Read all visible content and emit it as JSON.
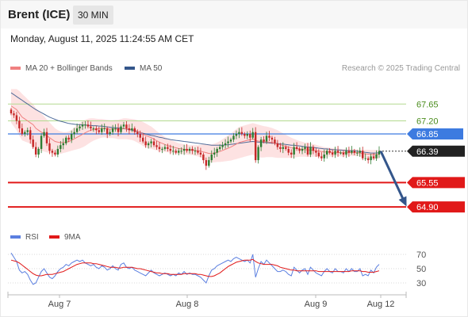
{
  "header": {
    "instrument": "Brent (ICE)",
    "interval": "30 MIN",
    "timestamp": "Monday, August 11, 2025 11:24:55 AM CET"
  },
  "legend": {
    "ma20_label": "MA 20 + Bollinger Bands",
    "ma50_label": "MA 50",
    "copyright": "Research © 2025 Trading Central",
    "rsi_label": "RSI",
    "rsi_ma_label": "9MA"
  },
  "colors": {
    "candle_up": "#2e7d32",
    "candle_down": "#c62828",
    "ma20": "#f08080",
    "ma50": "#34568b",
    "bollinger_fill": "#fde2e2",
    "green_level": "#b3d98f",
    "blue_level": "#3d7be0",
    "red_level": "#e11919",
    "last_price_bg": "#222222",
    "rsi": "#5b7fe0",
    "rsi_ma": "#e11919",
    "arrow": "#34568b"
  },
  "chart_data": [
    {
      "type": "candlestick",
      "title": "Brent (ICE)",
      "interval": "30 MIN",
      "x_ticks": [
        "Aug 7",
        "Aug 8",
        "Aug 9",
        "Aug 12"
      ],
      "ylim": [
        64.5,
        68.1
      ],
      "close": [
        67.4,
        67.35,
        67.2,
        67.0,
        66.85,
        66.9,
        66.95,
        66.7,
        66.5,
        66.3,
        66.45,
        66.8,
        66.9,
        66.6,
        66.4,
        66.35,
        66.3,
        66.45,
        66.55,
        66.6,
        66.75,
        66.7,
        66.85,
        66.9,
        67.0,
        67.05,
        67.1,
        67.1,
        67.05,
        67.0,
        67.0,
        66.95,
        66.9,
        67.0,
        67.0,
        66.85,
        66.9,
        67.0,
        67.0,
        66.9,
        67.05,
        67.1,
        67.0,
        66.95,
        67.0,
        66.9,
        66.85,
        66.75,
        66.65,
        66.55,
        66.6,
        66.65,
        66.55,
        66.5,
        66.45,
        66.45,
        66.5,
        66.45,
        66.4,
        66.4,
        66.35,
        66.4,
        66.4,
        66.45,
        66.4,
        66.45,
        66.4,
        66.4,
        66.35,
        66.3,
        66.15,
        66.0,
        66.15,
        66.3,
        66.35,
        66.45,
        66.5,
        66.55,
        66.6,
        66.65,
        66.7,
        66.8,
        66.85,
        66.9,
        66.85,
        66.8,
        66.85,
        66.75,
        66.9,
        66.15,
        66.5,
        66.7,
        66.65,
        66.8,
        66.75,
        66.7,
        66.6,
        66.5,
        66.45,
        66.5,
        66.45,
        66.35,
        66.3,
        66.5,
        66.45,
        66.4,
        66.45,
        66.5,
        66.3,
        66.5,
        66.4,
        66.35,
        66.25,
        66.2,
        66.3,
        66.4,
        66.35,
        66.3,
        66.4,
        66.35,
        66.35,
        66.3,
        66.4,
        66.35,
        66.4,
        66.35,
        66.35,
        66.4,
        66.2,
        66.2,
        66.15,
        66.25,
        66.2,
        66.3,
        66.39
      ],
      "ma20": [
        67.6,
        67.55,
        67.5,
        67.4,
        67.3,
        67.25,
        67.2,
        67.15,
        67.1,
        67.0,
        66.95,
        66.9,
        66.85,
        66.8,
        66.75,
        66.7,
        66.65,
        66.63,
        66.62,
        66.62,
        66.63,
        66.65,
        66.68,
        66.72,
        66.76,
        66.8,
        66.84,
        66.88,
        66.92,
        66.95,
        66.97,
        66.98,
        66.99,
        67.0,
        67.0,
        66.99,
        66.98,
        66.98,
        66.98,
        66.97,
        66.98,
        66.99,
        66.99,
        66.98,
        66.97,
        66.95,
        66.92,
        66.89,
        66.85,
        66.81,
        66.78,
        66.75,
        66.71,
        66.67,
        66.63,
        66.6,
        66.57,
        66.54,
        66.52,
        66.5,
        66.48,
        66.46,
        66.45,
        66.44,
        66.43,
        66.42,
        66.42,
        66.41,
        66.4,
        66.39,
        66.37,
        66.35,
        66.33,
        66.33,
        66.34,
        66.36,
        66.38,
        66.41,
        66.44,
        66.47,
        66.5,
        66.54,
        66.58,
        66.62,
        66.64,
        66.66,
        66.68,
        66.7,
        66.72,
        66.68,
        66.66,
        66.65,
        66.64,
        66.64,
        66.63,
        66.62,
        66.6,
        66.58,
        66.56,
        66.54,
        66.52,
        66.5,
        66.48,
        66.47,
        66.46,
        66.45,
        66.44,
        66.43,
        66.42,
        66.42,
        66.41,
        66.4,
        66.39,
        66.38,
        66.37,
        66.37,
        66.36,
        66.36,
        66.36,
        66.36,
        66.35,
        66.35,
        66.35,
        66.35,
        66.35,
        66.35,
        66.35,
        66.34,
        66.33,
        66.32,
        66.31,
        66.3,
        66.3,
        66.3,
        66.31
      ],
      "ma50": [
        67.95,
        67.9,
        67.85,
        67.8,
        67.75,
        67.7,
        67.65,
        67.6,
        67.55,
        67.5,
        67.46,
        67.42,
        67.38,
        67.34,
        67.3,
        67.27,
        67.24,
        67.21,
        67.19,
        67.17,
        67.15,
        67.13,
        67.12,
        67.11,
        67.1,
        67.1,
        67.09,
        67.09,
        67.08,
        67.08,
        67.07,
        67.07,
        67.06,
        67.06,
        67.05,
        67.04,
        67.03,
        67.02,
        67.02,
        67.01,
        67.0,
        66.99,
        66.98,
        66.97,
        66.95,
        66.93,
        66.91,
        66.89,
        66.87,
        66.85,
        66.83,
        66.81,
        66.8,
        66.78,
        66.76,
        66.75,
        66.73,
        66.72,
        66.7,
        66.69,
        66.68,
        66.67,
        66.66,
        66.65,
        66.64,
        66.63,
        66.62,
        66.61,
        66.6,
        66.59,
        66.58,
        66.57,
        66.56,
        66.55,
        66.55,
        66.55,
        66.55,
        66.55,
        66.56,
        66.56,
        66.57,
        66.58,
        66.59,
        66.6,
        66.61,
        66.62,
        66.63,
        66.64,
        66.65,
        66.64,
        66.63,
        66.63,
        66.62,
        66.62,
        66.61,
        66.6,
        66.6,
        66.59,
        66.58,
        66.58,
        66.57,
        66.56,
        66.55,
        66.55,
        66.54,
        66.53,
        66.52,
        66.51,
        66.5,
        66.5,
        66.49,
        66.48,
        66.47,
        66.46,
        66.45,
        66.45,
        66.44,
        66.43,
        66.43,
        66.42,
        66.42,
        66.41,
        66.41,
        66.4,
        66.4,
        66.4,
        66.39,
        66.38,
        66.37,
        66.36,
        66.35,
        66.34,
        66.34,
        66.34,
        66.35
      ],
      "bollinger_width": [
        0.45,
        0.5,
        0.55,
        0.6,
        0.62,
        0.6,
        0.58,
        0.56,
        0.55,
        0.54,
        0.52,
        0.5,
        0.47,
        0.44,
        0.41,
        0.38,
        0.35,
        0.32,
        0.3,
        0.28,
        0.27,
        0.27,
        0.28,
        0.3,
        0.32,
        0.34,
        0.35,
        0.35,
        0.34,
        0.32,
        0.3,
        0.28,
        0.26,
        0.25,
        0.24,
        0.24,
        0.24,
        0.24,
        0.25,
        0.26,
        0.27,
        0.28,
        0.28,
        0.28,
        0.28,
        0.29,
        0.3,
        0.31,
        0.32,
        0.32,
        0.31,
        0.3,
        0.28,
        0.26,
        0.24,
        0.22,
        0.2,
        0.18,
        0.17,
        0.16,
        0.15,
        0.14,
        0.14,
        0.13,
        0.13,
        0.13,
        0.13,
        0.14,
        0.15,
        0.17,
        0.2,
        0.22,
        0.24,
        0.24,
        0.25,
        0.26,
        0.28,
        0.3,
        0.32,
        0.34,
        0.36,
        0.38,
        0.4,
        0.42,
        0.42,
        0.42,
        0.42,
        0.42,
        0.42,
        0.44,
        0.44,
        0.43,
        0.42,
        0.41,
        0.4,
        0.39,
        0.38,
        0.37,
        0.35,
        0.33,
        0.31,
        0.29,
        0.27,
        0.25,
        0.23,
        0.21,
        0.2,
        0.19,
        0.19,
        0.18,
        0.17,
        0.16,
        0.15,
        0.14,
        0.13,
        0.12,
        0.12,
        0.11,
        0.1,
        0.1,
        0.1,
        0.1,
        0.09,
        0.09,
        0.09,
        0.09,
        0.09,
        0.09,
        0.1,
        0.11,
        0.12,
        0.12,
        0.12,
        0.12,
        0.12
      ],
      "levels": [
        {
          "label": "67.65",
          "value": 67.65,
          "kind": "resistance-green"
        },
        {
          "label": "67.20",
          "value": 67.2,
          "kind": "resistance-green"
        },
        {
          "label": "66.85",
          "value": 66.85,
          "kind": "pivot-blue"
        },
        {
          "label": "66.39",
          "value": 66.39,
          "kind": "last-price"
        },
        {
          "label": "65.55",
          "value": 65.55,
          "kind": "support-red"
        },
        {
          "label": "64.90",
          "value": 64.9,
          "kind": "support-red"
        }
      ],
      "projection": {
        "from": 66.39,
        "to": 64.9
      }
    },
    {
      "type": "line",
      "title": "RSI",
      "y_ticks": [
        "70",
        "50",
        "30"
      ],
      "ylim": [
        20,
        80
      ],
      "series": [
        {
          "name": "RSI",
          "values": [
            72,
            66,
            60,
            48,
            44,
            46,
            42,
            34,
            28,
            30,
            38,
            46,
            50,
            44,
            38,
            36,
            40,
            46,
            50,
            52,
            56,
            54,
            58,
            60,
            62,
            60,
            62,
            58,
            56,
            54,
            56,
            52,
            50,
            54,
            52,
            48,
            50,
            54,
            50,
            48,
            56,
            58,
            52,
            50,
            52,
            48,
            46,
            44,
            42,
            40,
            44,
            48,
            44,
            42,
            40,
            42,
            44,
            42,
            40,
            42,
            40,
            44,
            42,
            46,
            42,
            44,
            42,
            42,
            40,
            38,
            34,
            30,
            40,
            48,
            50,
            54,
            56,
            58,
            60,
            62,
            60,
            64,
            66,
            64,
            62,
            60,
            62,
            58,
            70,
            38,
            50,
            60,
            56,
            62,
            58,
            54,
            50,
            46,
            46,
            48,
            46,
            42,
            40,
            52,
            48,
            44,
            48,
            50,
            42,
            52,
            48,
            44,
            42,
            40,
            46,
            50,
            46,
            44,
            50,
            46,
            46,
            44,
            50,
            46,
            50,
            46,
            46,
            50,
            40,
            42,
            40,
            48,
            44,
            52,
            56
          ]
        },
        {
          "name": "9MA",
          "values": [
            62,
            61,
            60,
            58,
            55,
            52,
            49,
            46,
            43,
            41,
            40,
            40,
            41,
            42,
            42,
            42,
            43,
            44,
            45,
            46,
            48,
            50,
            52,
            54,
            56,
            57,
            58,
            58,
            58,
            58,
            57,
            57,
            56,
            55,
            54,
            53,
            52,
            52,
            52,
            51,
            51,
            52,
            52,
            52,
            52,
            51,
            50,
            50,
            49,
            48,
            47,
            46,
            45,
            44,
            44,
            43,
            43,
            43,
            42,
            42,
            42,
            42,
            42,
            43,
            43,
            43,
            43,
            43,
            42,
            42,
            41,
            40,
            39,
            39,
            40,
            42,
            44,
            47,
            50,
            53,
            55,
            57,
            59,
            60,
            61,
            62,
            62,
            62,
            63,
            60,
            58,
            57,
            56,
            56,
            56,
            56,
            55,
            54,
            52,
            51,
            50,
            49,
            48,
            48,
            47,
            47,
            47,
            47,
            47,
            47,
            47,
            47,
            46,
            46,
            46,
            46,
            46,
            46,
            46,
            46,
            46,
            46,
            46,
            46,
            47,
            47,
            47,
            47,
            46,
            46,
            45,
            45,
            45,
            46,
            47
          ]
        }
      ]
    }
  ]
}
